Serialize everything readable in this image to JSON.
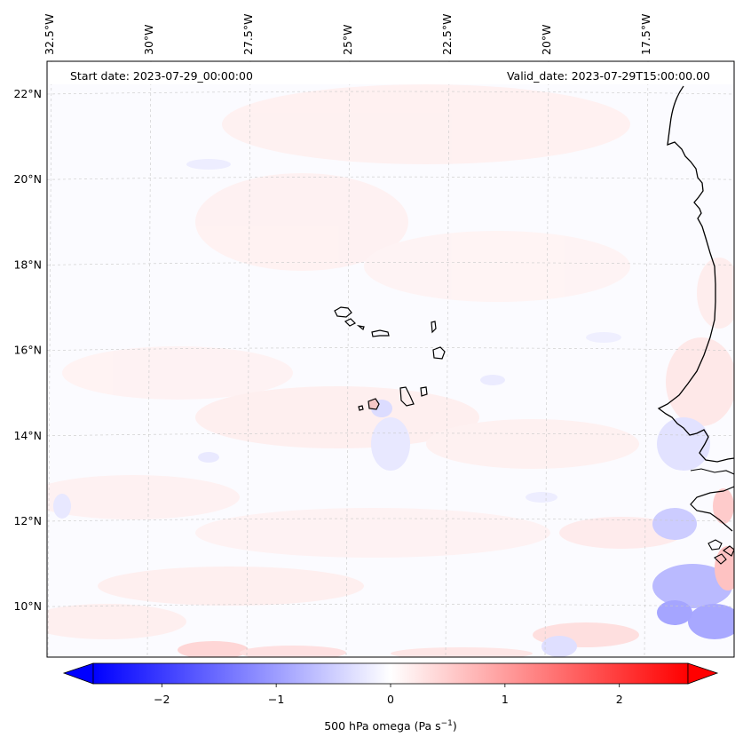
{
  "header": {
    "start_date": "Start date: 2023-07-29_00:00:00",
    "valid_date": "Valid_date: 2023-07-29T15:00:00.00"
  },
  "map": {
    "lon_ticks": [
      {
        "lon": -32.5,
        "label": "32.5°W"
      },
      {
        "lon": -30.0,
        "label": "30°W"
      },
      {
        "lon": -27.5,
        "label": "27.5°W"
      },
      {
        "lon": -25.0,
        "label": "25°W"
      },
      {
        "lon": -22.5,
        "label": "22.5°W"
      },
      {
        "lon": -20.0,
        "label": "20°W"
      },
      {
        "lon": -17.5,
        "label": "17.5°W"
      }
    ],
    "lat_ticks": [
      {
        "lat": 22,
        "label": "22°N"
      },
      {
        "lat": 20,
        "label": "20°N"
      },
      {
        "lat": 18,
        "label": "18°N"
      },
      {
        "lat": 16,
        "label": "16°N"
      },
      {
        "lat": 14,
        "label": "14°N"
      },
      {
        "lat": 12,
        "label": "12°N"
      },
      {
        "lat": 10,
        "label": "10°N"
      }
    ],
    "gridlines": true,
    "field": "500 hPa omega"
  },
  "colorbar": {
    "label": "500 hPa omega (Pa s",
    "label_exp": "−1",
    "label_close": ")",
    "range": [
      -2.6,
      2.6
    ],
    "ticks": [
      {
        "v": -2,
        "label": "−2"
      },
      {
        "v": -1,
        "label": "−1"
      },
      {
        "v": 0,
        "label": "0"
      },
      {
        "v": 1,
        "label": "1"
      },
      {
        "v": 2,
        "label": "2"
      }
    ],
    "colormap": "bwr",
    "extend": "both",
    "colors": {
      "negative": "#0000ff",
      "zero": "#ffffff",
      "positive": "#ff0000"
    }
  }
}
